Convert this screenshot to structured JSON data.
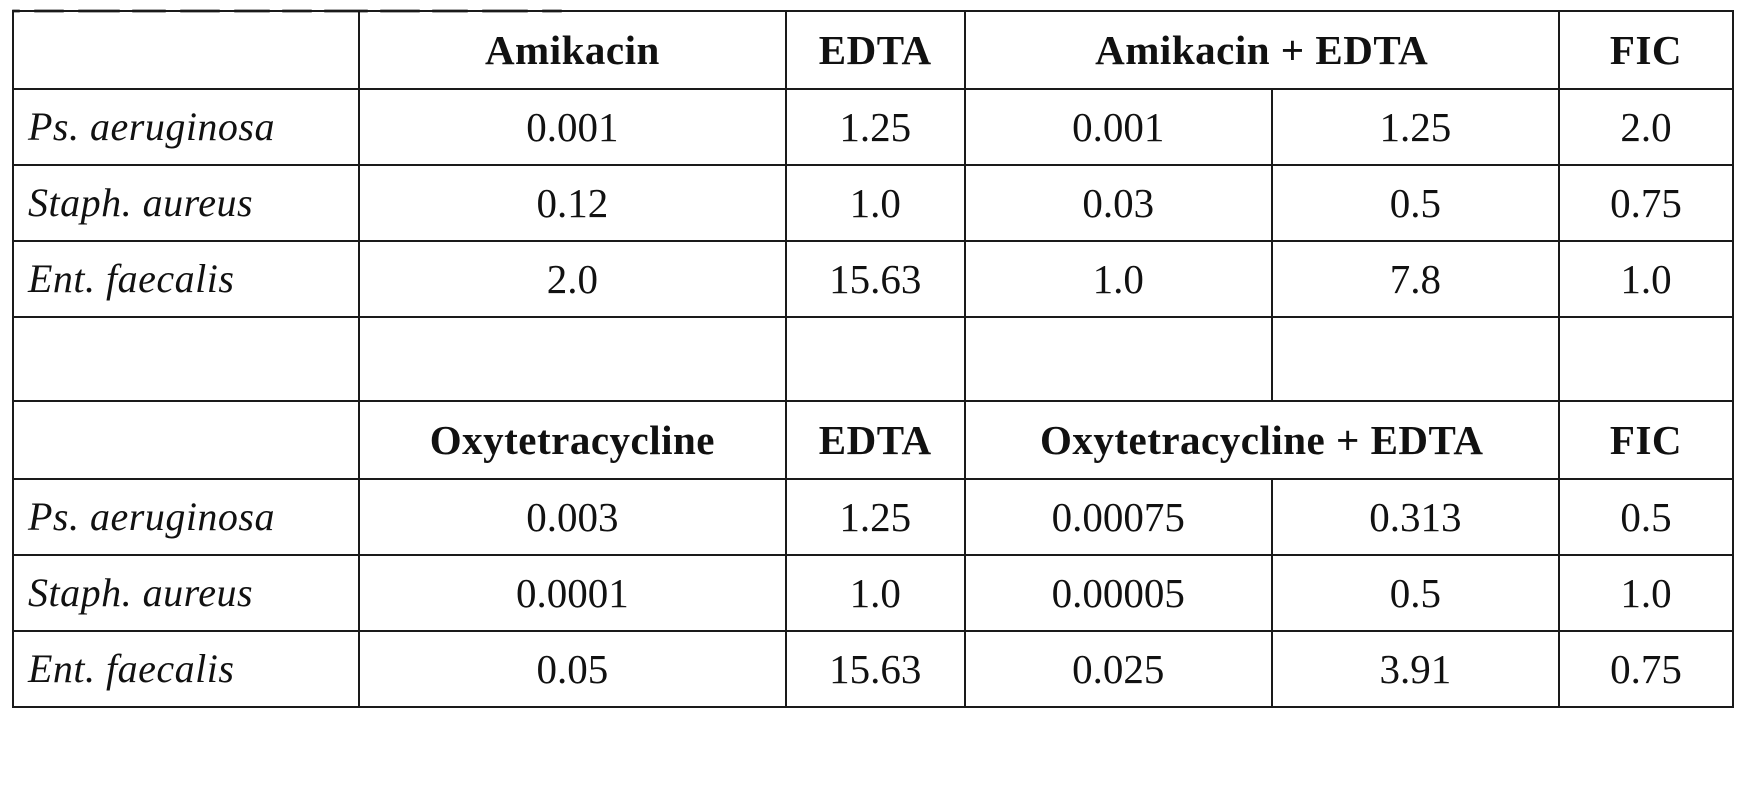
{
  "panels": [
    {
      "header": {
        "organism": "",
        "antibiotic": "Amikacin",
        "chelator": "EDTA",
        "combination": "Amikacin + EDTA",
        "fic": "FIC"
      },
      "rows": [
        {
          "organism": "Ps. aeruginosa",
          "antibiotic": "0.001",
          "chelator": "1.25",
          "combo_antibiotic": "0.001",
          "combo_chelator": "1.25",
          "fic": "2.0"
        },
        {
          "organism": "Staph. aureus",
          "antibiotic": "0.12",
          "chelator": "1.0",
          "combo_antibiotic": "0.03",
          "combo_chelator": "0.5",
          "fic": "0.75"
        },
        {
          "organism": "Ent. faecalis",
          "antibiotic": "2.0",
          "chelator": "15.63",
          "combo_antibiotic": "1.0",
          "combo_chelator": "7.8",
          "fic": "1.0"
        }
      ]
    },
    {
      "header": {
        "organism": "",
        "antibiotic": "Oxytetracycline",
        "chelator": "EDTA",
        "combination": "Oxytetracycline + EDTA",
        "fic": "FIC"
      },
      "rows": [
        {
          "organism": "Ps. aeruginosa",
          "antibiotic": "0.003",
          "chelator": "1.25",
          "combo_antibiotic": "0.00075",
          "combo_chelator": "0.313",
          "fic": "0.5"
        },
        {
          "organism": "Staph. aureus",
          "antibiotic": "0.0001",
          "chelator": "1.0",
          "combo_antibiotic": "0.00005",
          "combo_chelator": "0.5",
          "fic": "1.0"
        },
        {
          "organism": "Ent. faecalis",
          "antibiotic": "0.05",
          "chelator": "15.63",
          "combo_antibiotic": "0.025",
          "combo_chelator": "3.91",
          "fic": "0.75"
        }
      ]
    }
  ]
}
